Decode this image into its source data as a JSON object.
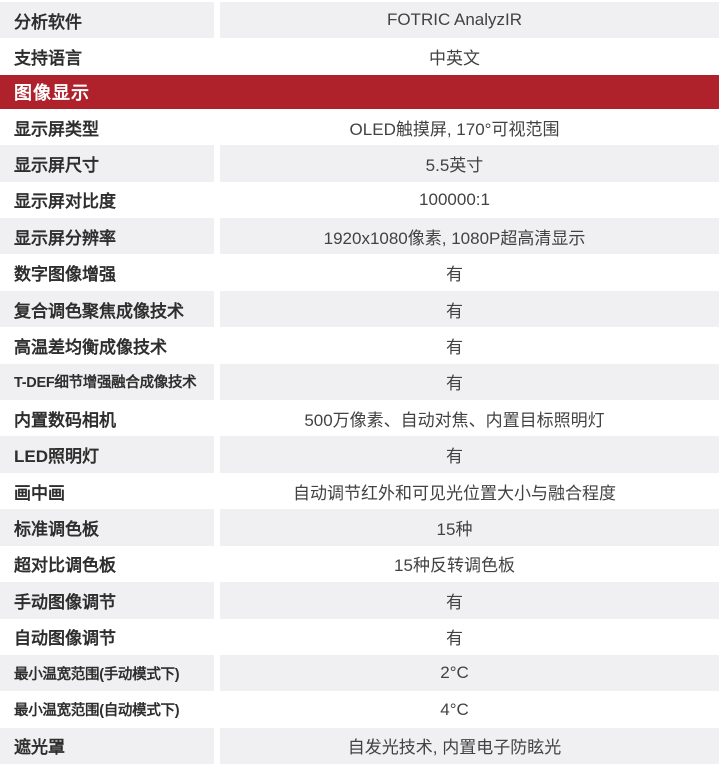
{
  "colors": {
    "accent_red": "#af212b",
    "row_shade": "#f0f0f2",
    "section_text": "#ffffff",
    "label_text": "#2e2e2e",
    "value_text": "#424242"
  },
  "table": {
    "rows": [
      {
        "type": "spec",
        "label": "分析软件",
        "value": "FOTRIC AnalyzIR",
        "shaded": true
      },
      {
        "type": "spec",
        "label": "支持语言",
        "value": "中英文",
        "shaded": false
      },
      {
        "type": "section",
        "label": "图像显示"
      },
      {
        "type": "spec",
        "label": "显示屏类型",
        "value": "OLED触摸屏, 170°可视范围",
        "shaded": false
      },
      {
        "type": "spec",
        "label": "显示屏尺寸",
        "value": "5.5英寸",
        "shaded": true
      },
      {
        "type": "spec",
        "label": "显示屏对比度",
        "value": "100000:1",
        "shaded": false
      },
      {
        "type": "spec",
        "label": "显示屏分辨率",
        "value": "1920x1080像素, 1080P超高清显示",
        "shaded": true
      },
      {
        "type": "spec",
        "label": "数字图像增强",
        "value": "有",
        "shaded": false
      },
      {
        "type": "spec",
        "label": "复合调色聚焦成像技术",
        "value": "有",
        "shaded": true
      },
      {
        "type": "spec",
        "label": "高温差均衡成像技术",
        "value": "有",
        "shaded": false
      },
      {
        "type": "spec",
        "label": "T-DEF细节增强融合成像技术",
        "value": "有",
        "shaded": true
      },
      {
        "type": "spec",
        "label": "内置数码相机",
        "value": "500万像素、自动对焦、内置目标照明灯",
        "shaded": false
      },
      {
        "type": "spec",
        "label": "LED照明灯",
        "value": "有",
        "shaded": true
      },
      {
        "type": "spec",
        "label": "画中画",
        "value": "自动调节红外和可见光位置大小与融合程度",
        "shaded": false
      },
      {
        "type": "spec",
        "label": "标准调色板",
        "value": "15种",
        "shaded": true
      },
      {
        "type": "spec",
        "label": "超对比调色板",
        "value": "15种反转调色板",
        "shaded": false
      },
      {
        "type": "spec",
        "label": "手动图像调节",
        "value": "有",
        "shaded": true
      },
      {
        "type": "spec",
        "label": "自动图像调节",
        "value": "有",
        "shaded": false
      },
      {
        "type": "spec",
        "label": "最小温宽范围(手动模式下)",
        "value": "2°C",
        "shaded": true
      },
      {
        "type": "spec",
        "label": "最小温宽范围(自动模式下)",
        "value": "4°C",
        "shaded": false
      },
      {
        "type": "spec",
        "label": "遮光罩",
        "value": "自发光技术, 内置电子防眩光",
        "shaded": true
      }
    ]
  }
}
